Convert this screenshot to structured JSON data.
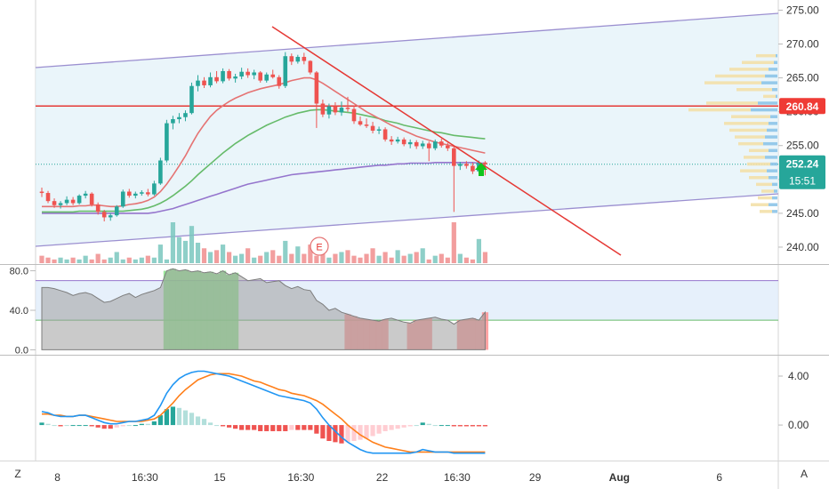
{
  "colors": {
    "up": "#26a69a",
    "down": "#ef5350",
    "bar_down": "#f08d8d",
    "bar_up": "#7ac7be",
    "ma_fast": "#e57373",
    "ma_mid": "#66bb6a",
    "ma_slow": "#9575cd",
    "channel": "#9b8fd0",
    "channel_fill": "#e3f1f8",
    "trendline": "#e53935",
    "hline": "#e53935",
    "price_tag": "#26a69a",
    "hline_tag": "#ef3b35",
    "macd": "#2196f3",
    "signal": "#ff7f1a",
    "vp_up": "#8cc4e8",
    "vp_down": "#f3e0a8"
  },
  "chart_data": [
    {
      "type": "candlestick",
      "name": "price",
      "y_ticks": [
        "275.00",
        "270.00",
        "265.00",
        "260.00",
        "255.00",
        "250.00",
        "245.00",
        "240.00"
      ],
      "y_tick_values": [
        275,
        270,
        265,
        260,
        255,
        250,
        245,
        240
      ],
      "ylim": [
        237.5,
        276.5
      ],
      "last_price": {
        "value": 252.24,
        "label": "252.24",
        "countdown": "15:51"
      },
      "horizontal_line": {
        "value": 260.84,
        "label": "260.84"
      },
      "earnings_marker": "E",
      "signal_arrow": "up",
      "candles": [
        [
          248.2,
          248.8,
          247.4,
          248.0
        ],
        [
          248.0,
          248.3,
          246.5,
          246.8
        ],
        [
          246.8,
          247.2,
          245.8,
          246.2
        ],
        [
          246.2,
          246.8,
          245.7,
          246.5
        ],
        [
          246.5,
          247.5,
          246.2,
          247.0
        ],
        [
          247.0,
          247.4,
          246.2,
          246.5
        ],
        [
          246.5,
          247.8,
          246.3,
          247.6
        ],
        [
          247.6,
          248.3,
          247.2,
          247.9
        ],
        [
          247.9,
          248.1,
          246.0,
          246.3
        ],
        [
          246.3,
          246.6,
          244.8,
          245.2
        ],
        [
          245.2,
          245.5,
          243.8,
          244.4
        ],
        [
          244.4,
          245.0,
          243.9,
          244.7
        ],
        [
          244.7,
          246.2,
          244.5,
          246.0
        ],
        [
          246.0,
          248.5,
          245.8,
          248.2
        ],
        [
          248.2,
          248.6,
          247.3,
          247.6
        ],
        [
          247.6,
          248.2,
          247.2,
          247.9
        ],
        [
          247.9,
          248.4,
          247.6,
          248.1
        ],
        [
          248.1,
          248.6,
          247.5,
          247.8
        ],
        [
          247.8,
          249.8,
          247.6,
          249.4
        ],
        [
          249.4,
          253.2,
          249.2,
          252.8
        ],
        [
          252.8,
          258.8,
          252.5,
          258.3
        ],
        [
          258.3,
          259.4,
          257.4,
          258.9
        ],
        [
          258.9,
          259.8,
          258.3,
          259.2
        ],
        [
          259.2,
          260.2,
          258.6,
          259.8
        ],
        [
          259.8,
          264.3,
          259.6,
          263.8
        ],
        [
          263.8,
          265.4,
          263.0,
          264.6
        ],
        [
          264.6,
          265.1,
          263.5,
          263.9
        ],
        [
          263.9,
          265.8,
          263.6,
          265.1
        ],
        [
          265.1,
          266.0,
          264.2,
          264.5
        ],
        [
          264.5,
          266.4,
          264.2,
          266.0
        ],
        [
          266.0,
          266.3,
          264.6,
          264.9
        ],
        [
          264.9,
          265.6,
          264.3,
          265.2
        ],
        [
          265.2,
          266.5,
          264.8,
          265.9
        ],
        [
          265.9,
          266.4,
          265.0,
          265.4
        ],
        [
          265.4,
          266.2,
          264.8,
          265.8
        ],
        [
          265.8,
          266.0,
          264.3,
          264.6
        ],
        [
          264.6,
          265.8,
          264.3,
          265.5
        ],
        [
          265.5,
          266.2,
          264.9,
          265.1
        ],
        [
          265.1,
          265.4,
          263.4,
          263.8
        ],
        [
          263.8,
          268.8,
          263.5,
          268.2
        ],
        [
          268.2,
          268.6,
          266.9,
          267.4
        ],
        [
          267.4,
          268.4,
          267.1,
          268.1
        ],
        [
          268.1,
          268.7,
          267.0,
          267.5
        ],
        [
          267.5,
          267.6,
          265.5,
          265.8
        ],
        [
          265.8,
          266.0,
          257.6,
          261.2
        ],
        [
          261.2,
          261.8,
          259.2,
          259.6
        ],
        [
          259.6,
          261.2,
          259.0,
          260.8
        ],
        [
          260.8,
          261.4,
          259.5,
          259.9
        ],
        [
          259.9,
          261.5,
          259.4,
          260.6
        ],
        [
          260.6,
          262.2,
          260.0,
          260.4
        ],
        [
          260.4,
          260.9,
          258.2,
          258.6
        ],
        [
          258.6,
          259.3,
          257.9,
          258.1
        ],
        [
          258.1,
          259.0,
          257.6,
          257.9
        ],
        [
          257.9,
          258.5,
          256.8,
          257.2
        ],
        [
          257.2,
          257.8,
          256.7,
          257.4
        ],
        [
          257.4,
          257.7,
          255.6,
          255.9
        ],
        [
          255.9,
          256.4,
          255.1,
          255.6
        ],
        [
          255.6,
          256.3,
          255.3,
          255.9
        ],
        [
          255.9,
          256.2,
          254.9,
          255.2
        ],
        [
          255.2,
          255.9,
          254.6,
          255.5
        ],
        [
          255.5,
          255.8,
          254.5,
          254.9
        ],
        [
          254.9,
          255.7,
          254.5,
          255.3
        ],
        [
          255.3,
          255.6,
          252.7,
          254.6
        ],
        [
          254.6,
          255.9,
          254.3,
          255.6
        ],
        [
          255.6,
          256.0,
          254.7,
          255.0
        ],
        [
          255.0,
          255.4,
          254.2,
          254.6
        ],
        [
          254.6,
          254.9,
          245.2,
          252.0
        ],
        [
          252.0,
          252.6,
          251.4,
          252.3
        ],
        [
          252.3,
          252.7,
          251.6,
          252.0
        ],
        [
          252.0,
          252.5,
          250.8,
          251.2
        ],
        [
          251.2,
          252.8,
          250.9,
          252.5
        ],
        [
          252.5,
          252.7,
          250.6,
          252.24
        ]
      ],
      "sma_fast": [
        246.0,
        246.0,
        246.0,
        246.0,
        246.0,
        246.0,
        246.1,
        246.1,
        246.2,
        246.2,
        246.1,
        246.0,
        246.0,
        246.1,
        246.3,
        246.4,
        246.6,
        246.9,
        247.4,
        248.2,
        249.3,
        250.6,
        252.0,
        253.5,
        255.2,
        256.8,
        258.1,
        259.3,
        260.2,
        260.9,
        261.5,
        262.0,
        262.4,
        262.8,
        263.1,
        263.4,
        263.6,
        263.8,
        264.0,
        264.3,
        264.6,
        264.8,
        265.0,
        265.0,
        264.7,
        264.2,
        263.6,
        263.0,
        262.4,
        261.8,
        261.2,
        260.6,
        260.0,
        259.5,
        259.0,
        258.5,
        258.0,
        257.6,
        257.2,
        256.8,
        256.4,
        256.1,
        255.8,
        255.5,
        255.3,
        255.1,
        254.9,
        254.7,
        254.5,
        254.3,
        254.1,
        253.9
      ],
      "sma_mid": [
        245.2,
        245.2,
        245.2,
        245.2,
        245.2,
        245.2,
        245.3,
        245.3,
        245.3,
        245.3,
        245.3,
        245.3,
        245.3,
        245.3,
        245.4,
        245.5,
        245.6,
        245.8,
        246.1,
        246.5,
        247.0,
        247.6,
        248.3,
        249.0,
        249.8,
        250.7,
        251.5,
        252.3,
        253.1,
        253.9,
        254.6,
        255.3,
        255.9,
        256.5,
        257.0,
        257.5,
        258.0,
        258.4,
        258.8,
        259.2,
        259.5,
        259.8,
        260.0,
        260.2,
        260.3,
        260.3,
        260.2,
        260.1,
        260.0,
        259.9,
        259.8,
        259.6,
        259.4,
        259.2,
        259.0,
        258.7,
        258.5,
        258.3,
        258.0,
        257.8,
        257.6,
        257.4,
        257.2,
        257.0,
        256.9,
        256.7,
        256.5,
        256.4,
        256.3,
        256.2,
        256.1,
        256.0
      ],
      "sma_slow": [
        245.0,
        245.0,
        245.0,
        245.0,
        245.0,
        245.0,
        245.0,
        245.0,
        245.0,
        245.0,
        245.0,
        245.0,
        245.0,
        245.0,
        245.0,
        245.0,
        245.0,
        245.0,
        245.1,
        245.3,
        245.5,
        245.7,
        246.0,
        246.3,
        246.6,
        246.9,
        247.2,
        247.5,
        247.8,
        248.1,
        248.4,
        248.7,
        249.0,
        249.3,
        249.5,
        249.7,
        249.9,
        250.1,
        250.3,
        250.5,
        250.7,
        250.8,
        250.9,
        251.0,
        251.1,
        251.2,
        251.3,
        251.4,
        251.5,
        251.6,
        251.7,
        251.8,
        251.9,
        252.0,
        252.1,
        252.1,
        252.2,
        252.3,
        252.3,
        252.4,
        252.4,
        252.4,
        252.4,
        252.5,
        252.5,
        252.5,
        252.5,
        252.5,
        252.5,
        252.5,
        252.4,
        252.4
      ],
      "volume": [
        4,
        3,
        2,
        3,
        2,
        3,
        2,
        4,
        2,
        5,
        2,
        3,
        6,
        2,
        3,
        2,
        3,
        4,
        3,
        10,
        2,
        22,
        14,
        12,
        20,
        11,
        8,
        6,
        7,
        10,
        6,
        4,
        5,
        8,
        3,
        4,
        6,
        7,
        4,
        12,
        5,
        9,
        5,
        10,
        4,
        8,
        3,
        5,
        6,
        7,
        4,
        3,
        5,
        8,
        4,
        6,
        3,
        7,
        4,
        5,
        6,
        8,
        2,
        4,
        5,
        3,
        22,
        5,
        3,
        2,
        13,
        6
      ]
    },
    {
      "type": "area",
      "name": "oscillator",
      "y_ticks": [
        "80.0",
        "40.0",
        "0.0"
      ],
      "y_tick_values": [
        80,
        40,
        0
      ],
      "ylim": [
        -5,
        85
      ],
      "band": [
        30,
        70
      ],
      "values": [
        63,
        63,
        62,
        60,
        58,
        55,
        57,
        58,
        56,
        52,
        48,
        49,
        52,
        55,
        57,
        53,
        56,
        58,
        60,
        63,
        80,
        82,
        80,
        81,
        79,
        80,
        78,
        79,
        77,
        80,
        76,
        78,
        74,
        70,
        71,
        72,
        68,
        69,
        70,
        65,
        62,
        64,
        61,
        60,
        50,
        46,
        40,
        42,
        38,
        36,
        34,
        32,
        31,
        30,
        29,
        31,
        32,
        30,
        28,
        27,
        30,
        31,
        32,
        33,
        31,
        30,
        26,
        30,
        31,
        32,
        30,
        38
      ],
      "highlight_over": [
        20,
        21,
        22,
        23,
        24,
        25,
        26,
        27,
        28,
        29,
        30,
        31
      ],
      "highlight_under": [
        49,
        50,
        51,
        52,
        53,
        54,
        55,
        59,
        60,
        61,
        62,
        67,
        68,
        69,
        70,
        71
      ]
    },
    {
      "type": "macd",
      "name": "macd",
      "y_ticks": [
        "4.00",
        "0.00"
      ],
      "y_tick_values": [
        4,
        0
      ],
      "ylim": [
        -2.9,
        5.6
      ],
      "macd": [
        1.1,
        1.0,
        0.8,
        0.7,
        0.7,
        0.7,
        0.8,
        0.8,
        0.6,
        0.4,
        0.2,
        0.1,
        0.1,
        0.2,
        0.3,
        0.3,
        0.4,
        0.5,
        0.8,
        1.6,
        2.6,
        3.3,
        3.8,
        4.1,
        4.3,
        4.4,
        4.4,
        4.3,
        4.2,
        4.1,
        4.0,
        3.8,
        3.6,
        3.4,
        3.2,
        3.0,
        2.8,
        2.6,
        2.4,
        2.3,
        2.2,
        2.1,
        2.0,
        1.8,
        1.3,
        0.6,
        0.0,
        -0.5,
        -1.0,
        -1.4,
        -1.7,
        -2.0,
        -2.2,
        -2.3,
        -2.3,
        -2.3,
        -2.3,
        -2.3,
        -2.3,
        -2.3,
        -2.2,
        -2.0,
        -2.1,
        -2.2,
        -2.2,
        -2.2,
        -2.3,
        -2.3,
        -2.3,
        -2.3,
        -2.3,
        -2.3
      ],
      "signal": [
        0.9,
        0.9,
        0.8,
        0.8,
        0.7,
        0.7,
        0.8,
        0.8,
        0.7,
        0.6,
        0.5,
        0.4,
        0.3,
        0.3,
        0.3,
        0.3,
        0.3,
        0.4,
        0.5,
        0.8,
        1.3,
        1.8,
        2.4,
        2.9,
        3.3,
        3.7,
        3.9,
        4.1,
        4.2,
        4.2,
        4.2,
        4.1,
        4.0,
        3.8,
        3.6,
        3.5,
        3.3,
        3.1,
        2.9,
        2.8,
        2.6,
        2.5,
        2.4,
        2.2,
        2.0,
        1.7,
        1.3,
        0.9,
        0.5,
        0.0,
        -0.4,
        -0.8,
        -1.1,
        -1.4,
        -1.6,
        -1.8,
        -1.9,
        -2.0,
        -2.1,
        -2.2,
        -2.2,
        -2.2,
        -2.2,
        -2.2,
        -2.2,
        -2.2,
        -2.2,
        -2.2,
        -2.2,
        -2.2,
        -2.2,
        -2.2
      ]
    }
  ],
  "x_axis": {
    "labels": [
      "8",
      "16:30",
      "15",
      "16:30",
      "22",
      "16:30",
      "29",
      "Aug",
      "6"
    ],
    "label_slots": [
      2.5,
      16.5,
      28.5,
      41.5,
      54.5,
      66.5,
      79,
      92.5,
      108.5
    ],
    "bold": [
      false,
      false,
      false,
      false,
      false,
      false,
      false,
      true,
      false
    ]
  },
  "controls": {
    "left": "Z",
    "right": "A"
  }
}
